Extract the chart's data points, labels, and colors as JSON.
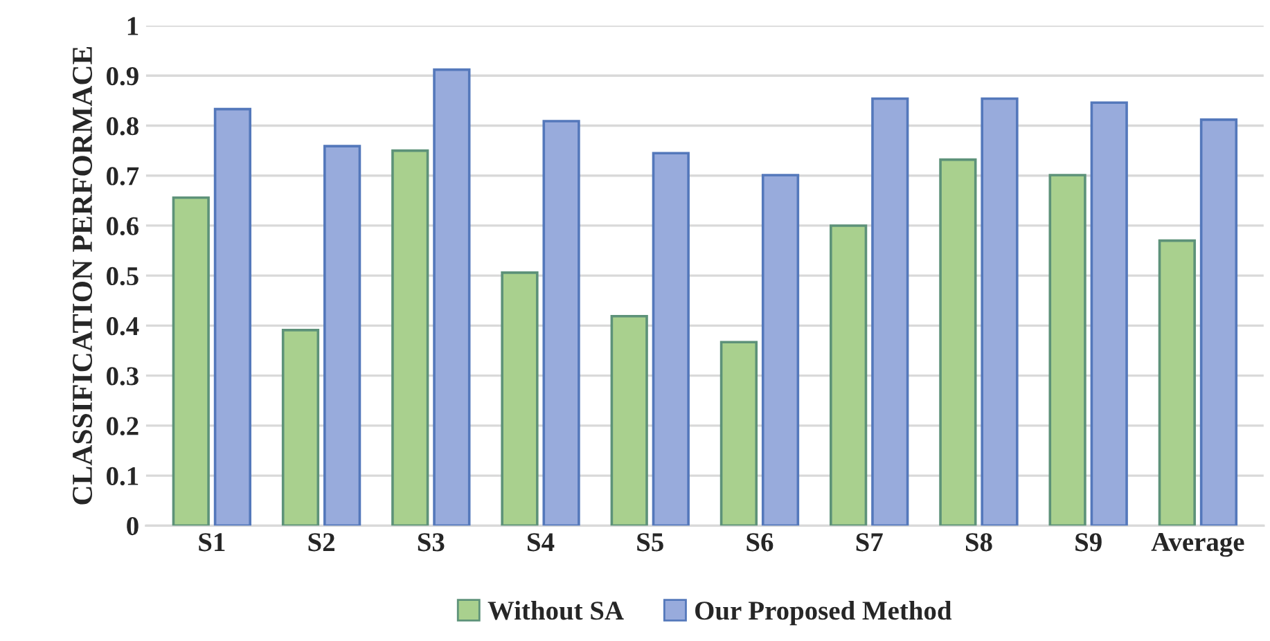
{
  "chart_data": {
    "type": "bar",
    "ylabel": "CLASSIFICATION PERFORMACE",
    "categories": [
      "S1",
      "S2",
      "S3",
      "S4",
      "S5",
      "S6",
      "S7",
      "S8",
      "S9",
      "Average"
    ],
    "series": [
      {
        "name": "Without SA",
        "color": "#a9d08e",
        "values": [
          0.656,
          0.391,
          0.75,
          0.506,
          0.419,
          0.367,
          0.6,
          0.732,
          0.701,
          0.57
        ]
      },
      {
        "name": "Our Proposed Method",
        "color": "#98abdc",
        "values": [
          0.833,
          0.759,
          0.912,
          0.809,
          0.745,
          0.701,
          0.854,
          0.854,
          0.846,
          0.812
        ]
      }
    ],
    "ylim": [
      0,
      1
    ],
    "yticks": [
      0,
      0.1,
      0.2,
      0.3,
      0.4,
      0.5,
      0.6,
      0.7,
      0.8,
      0.9,
      1
    ],
    "grid": "y",
    "legend": "bottom"
  }
}
